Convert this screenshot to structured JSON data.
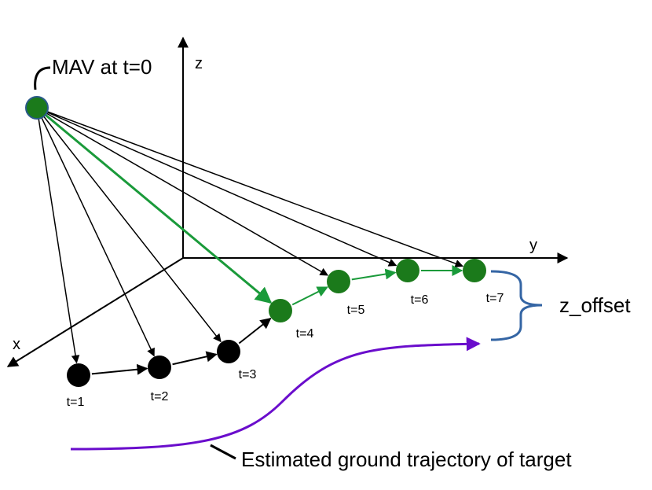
{
  "labels": {
    "mav": "MAV at t=0",
    "z_axis": "z",
    "y_axis": "y",
    "x_axis": "x",
    "z_offset": "z_offset",
    "trajectory": "Estimated ground trajectory of target"
  },
  "points": [
    "t=1",
    "t=2",
    "t=3",
    "t=4",
    "t=5",
    "t=6",
    "t=7"
  ]
}
